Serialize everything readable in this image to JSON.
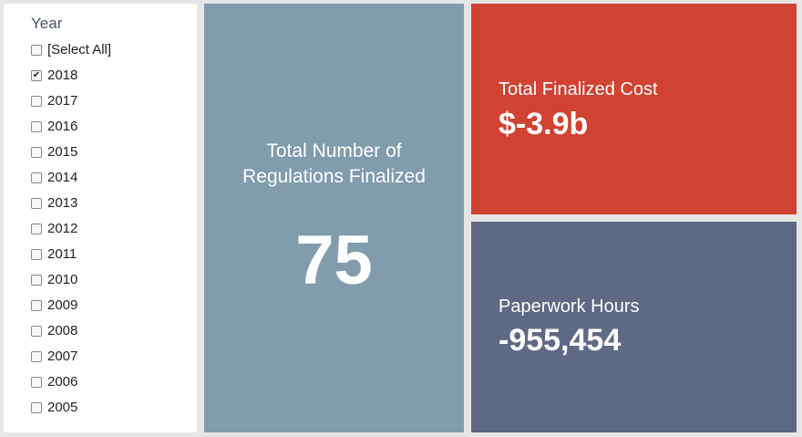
{
  "filter": {
    "title": "Year",
    "items": [
      {
        "label": "[Select All]",
        "checked": false
      },
      {
        "label": "2018",
        "checked": true
      },
      {
        "label": "2017",
        "checked": false
      },
      {
        "label": "2016",
        "checked": false
      },
      {
        "label": "2015",
        "checked": false
      },
      {
        "label": "2014",
        "checked": false
      },
      {
        "label": "2013",
        "checked": false
      },
      {
        "label": "2012",
        "checked": false
      },
      {
        "label": "2011",
        "checked": false
      },
      {
        "label": "2010",
        "checked": false
      },
      {
        "label": "2009",
        "checked": false
      },
      {
        "label": "2008",
        "checked": false
      },
      {
        "label": "2007",
        "checked": false
      },
      {
        "label": "2006",
        "checked": false
      },
      {
        "label": "2005",
        "checked": false
      }
    ]
  },
  "kpis": {
    "regulations": {
      "label": "Total Number of Regulations Finalized",
      "value": "75",
      "color": "#809cad"
    },
    "cost": {
      "label": "Total Finalized Cost",
      "value": "$-3.9b",
      "color": "#d04232"
    },
    "hours": {
      "label": "Paperwork Hours",
      "value": "-955,454",
      "color": "#5f6884"
    }
  },
  "colors": {
    "background": "#e6e6e6",
    "text_on_tile": "#ffffff"
  }
}
